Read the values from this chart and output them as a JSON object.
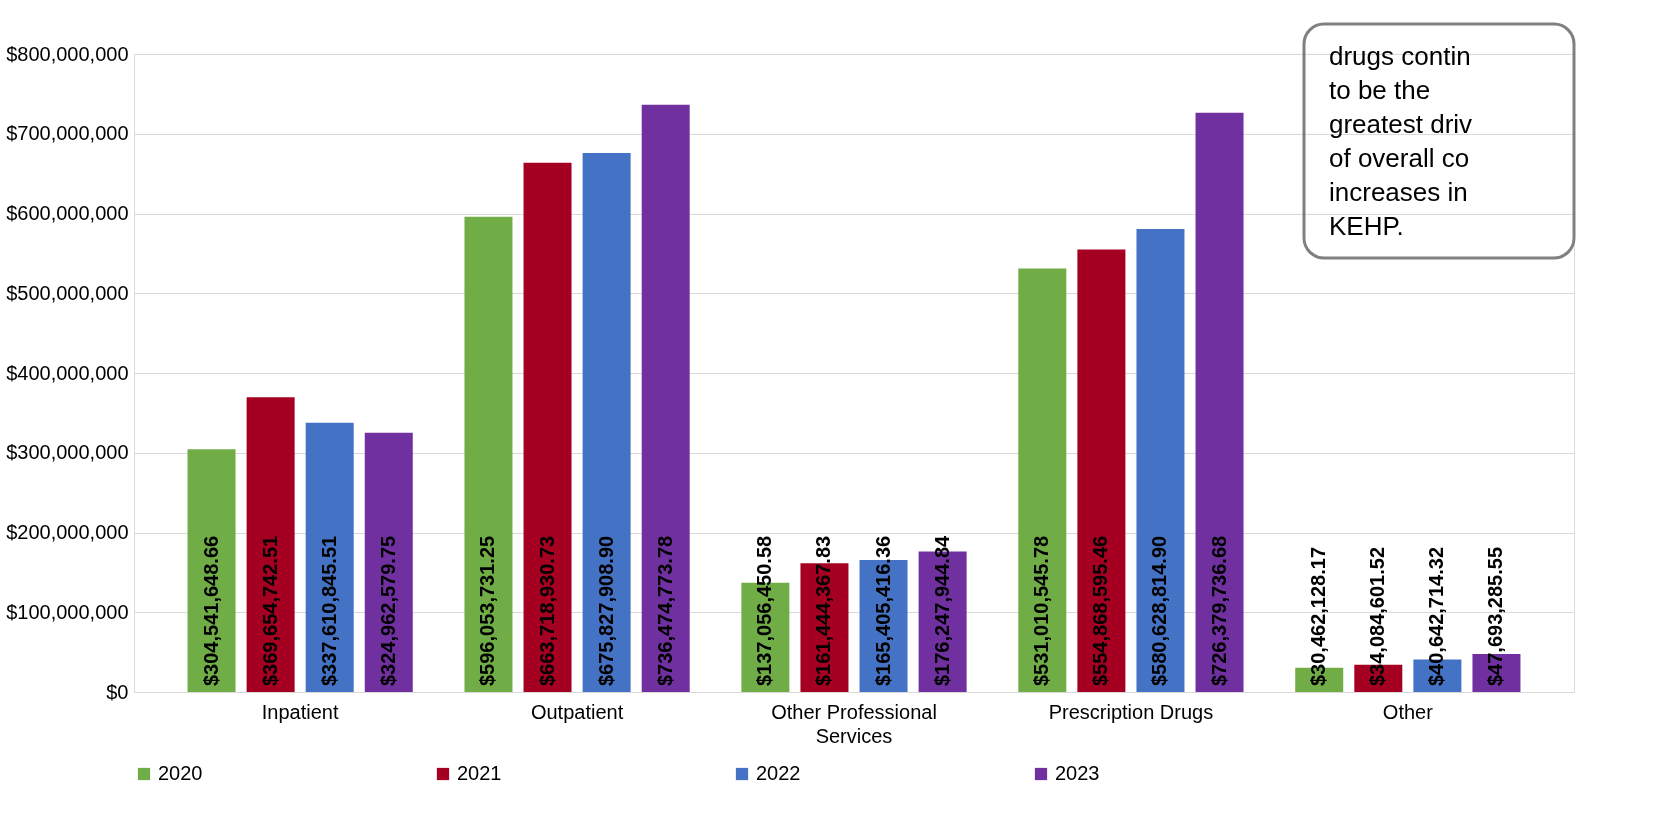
{
  "chart_data": {
    "type": "bar",
    "categories": [
      "Inpatient",
      "Outpatient",
      "Other Professional Services",
      "Prescription Drugs",
      "Other"
    ],
    "series": [
      {
        "name": "2020",
        "color": "#70ad47",
        "values": [
          304541648.66,
          596053731.25,
          137056450.58,
          531010545.78,
          30462128.17
        ],
        "value_labels": [
          "$304,541,648.66",
          "$596,053,731.25",
          "$137,056,450.58",
          "$531,010,545.78",
          "$30,462,128.17"
        ]
      },
      {
        "name": "2021",
        "color": "#a50021",
        "values": [
          369654742.51,
          663718930.73,
          161444367.83,
          554868595.46,
          34084601.52
        ],
        "value_labels": [
          "$369,654,742.51",
          "$663,718,930.73",
          "$161,444,367.83",
          "$554,868,595.46",
          "$34,084,601.52"
        ]
      },
      {
        "name": "2022",
        "color": "#4472c4",
        "values": [
          337610845.51,
          675827908.9,
          165405416.36,
          580628814.9,
          40642714.32
        ],
        "value_labels": [
          "$337,610,845.51",
          "$675,827,908.90",
          "$165,405,416.36",
          "$580,628,814.90",
          "$40,642,714.32"
        ]
      },
      {
        "name": "2023",
        "color": "#7030a0",
        "values": [
          324962579.75,
          736474773.78,
          176247944.84,
          726379736.68,
          47693285.55
        ],
        "value_labels": [
          "$324,962,579.75",
          "$736,474,773.78",
          "$176,247,944.84",
          "$726,379,736.68",
          "$47,693,285.55"
        ]
      }
    ],
    "ylim": [
      0,
      800000000
    ],
    "yticks": [
      {
        "value": 0,
        "label": "$0"
      },
      {
        "value": 100000000,
        "label": "$100,000,000"
      },
      {
        "value": 200000000,
        "label": "$200,000,000"
      },
      {
        "value": 300000000,
        "label": "$300,000,000"
      },
      {
        "value": 400000000,
        "label": "$400,000,000"
      },
      {
        "value": 500000000,
        "label": "$500,000,000"
      },
      {
        "value": 600000000,
        "label": "$600,000,000"
      },
      {
        "value": 700000000,
        "label": "$700,000,000"
      },
      {
        "value": 800000000,
        "label": "$800,000,000"
      }
    ],
    "grid": "y",
    "legend": "bottom",
    "annotations": [
      "drugs contin\nto be the\ngreatest driv\nof overall co\nincreases in\nKEHP."
    ]
  }
}
